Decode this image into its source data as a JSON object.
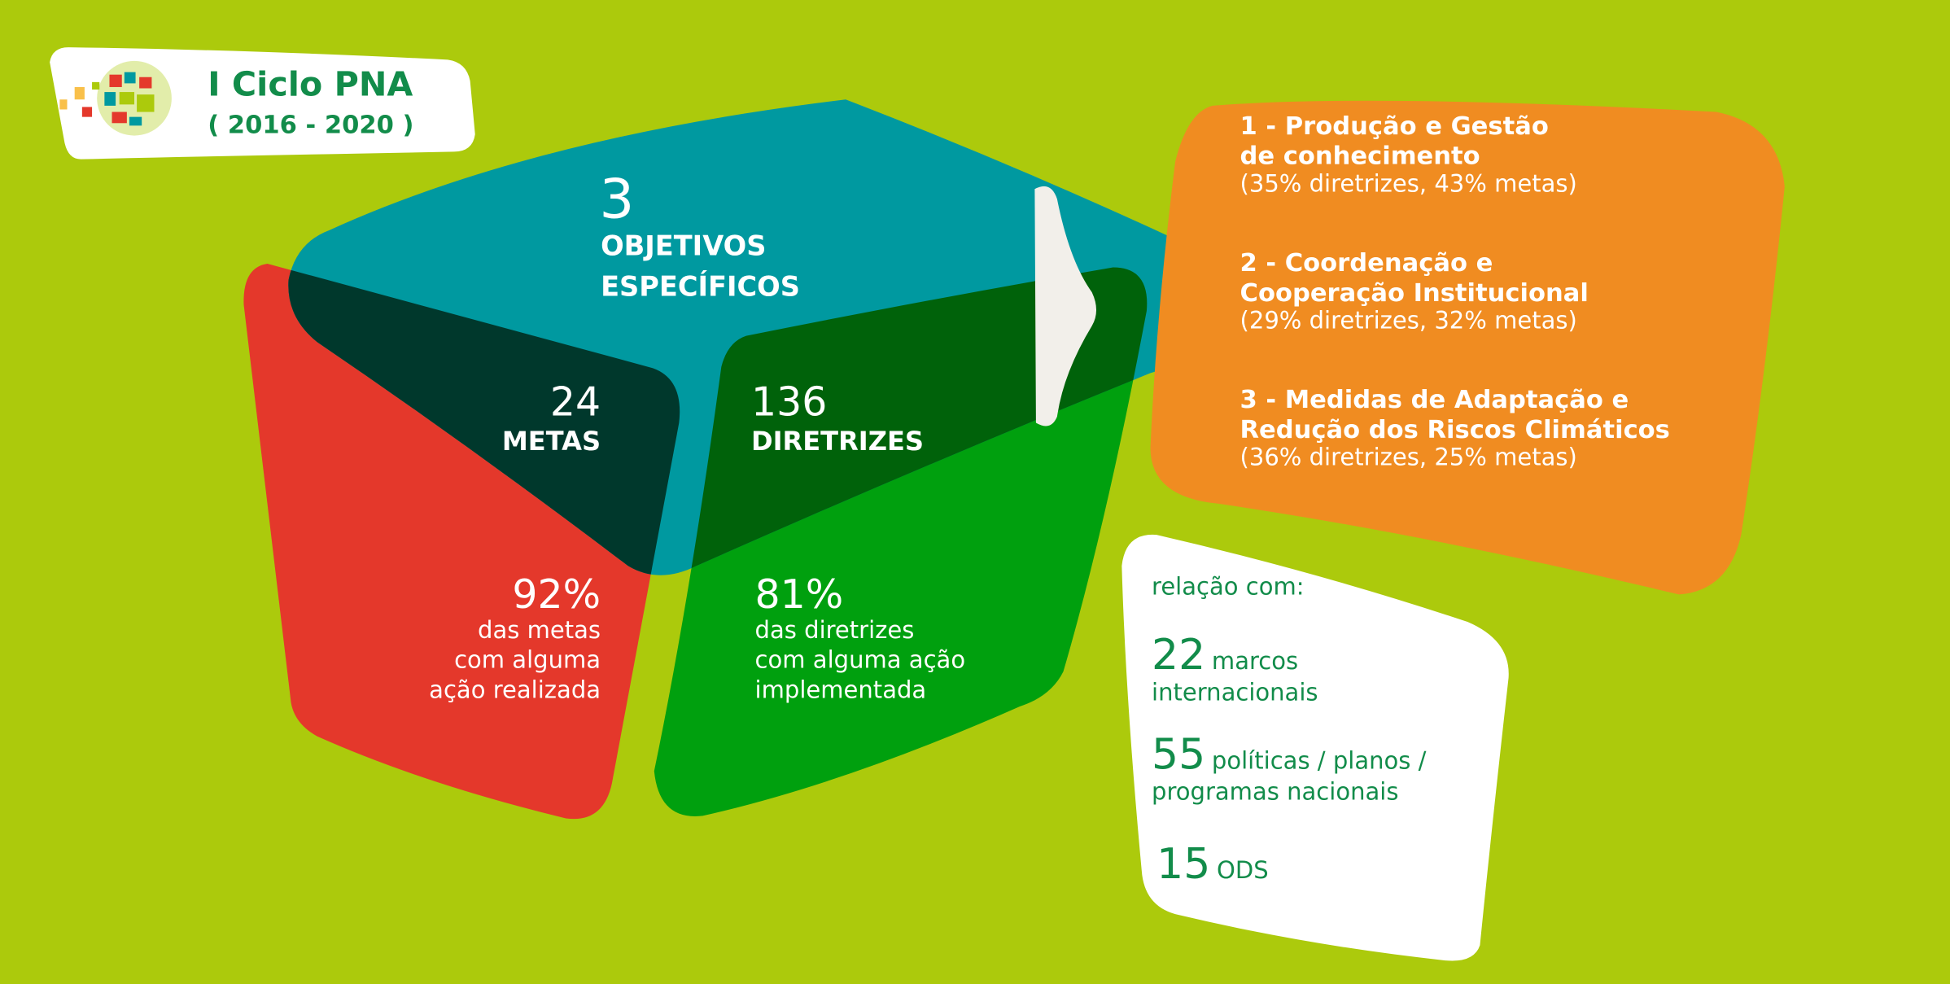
{
  "logo": {
    "title": "I Ciclo PNA",
    "period": "( 2016 - 2020 )"
  },
  "colors": {
    "background": "#ACCA0C",
    "objetivos": "#0099A0",
    "metas": "#E4382B",
    "diretrizes": "#00A00E",
    "eixos": "#F08C21",
    "text_green": "#128C4A"
  },
  "objetivos": {
    "number": "3",
    "label_line1": "OBJETIVOS",
    "label_line2": "ESPECÍFICOS"
  },
  "metas": {
    "number": "24",
    "label": "METAS",
    "percent": "92%",
    "desc_line1": "das metas",
    "desc_line2": "com alguma",
    "desc_line3": "ação realizada"
  },
  "diretrizes": {
    "number": "136",
    "label": "DIRETRIZES",
    "percent": "81%",
    "desc_line1": "das diretrizes",
    "desc_line2": "com alguma ação",
    "desc_line3": "implementada"
  },
  "eixos": [
    {
      "title_line1": "1 - Produção e Gestão",
      "title_line2": "de conhecimento",
      "detail": "(35% diretrizes, 43% metas)"
    },
    {
      "title_line1": "2 - Coordenação e",
      "title_line2": "Cooperação Institucional",
      "detail": "(29% diretrizes, 32% metas)"
    },
    {
      "title_line1": "3 - Medidas de Adaptação e",
      "title_line2": "Redução dos Riscos Climáticos",
      "detail": "(36% diretrizes, 25% metas)"
    }
  ],
  "relacao": {
    "heading": "relação com:",
    "items": [
      {
        "number": "22",
        "label_line1": "marcos",
        "label_line2": "internacionais"
      },
      {
        "number": "55",
        "label_line1": "políticas / planos /",
        "label_line2": "programas nacionais"
      },
      {
        "number": "15",
        "label_line1": "ODS"
      }
    ]
  }
}
